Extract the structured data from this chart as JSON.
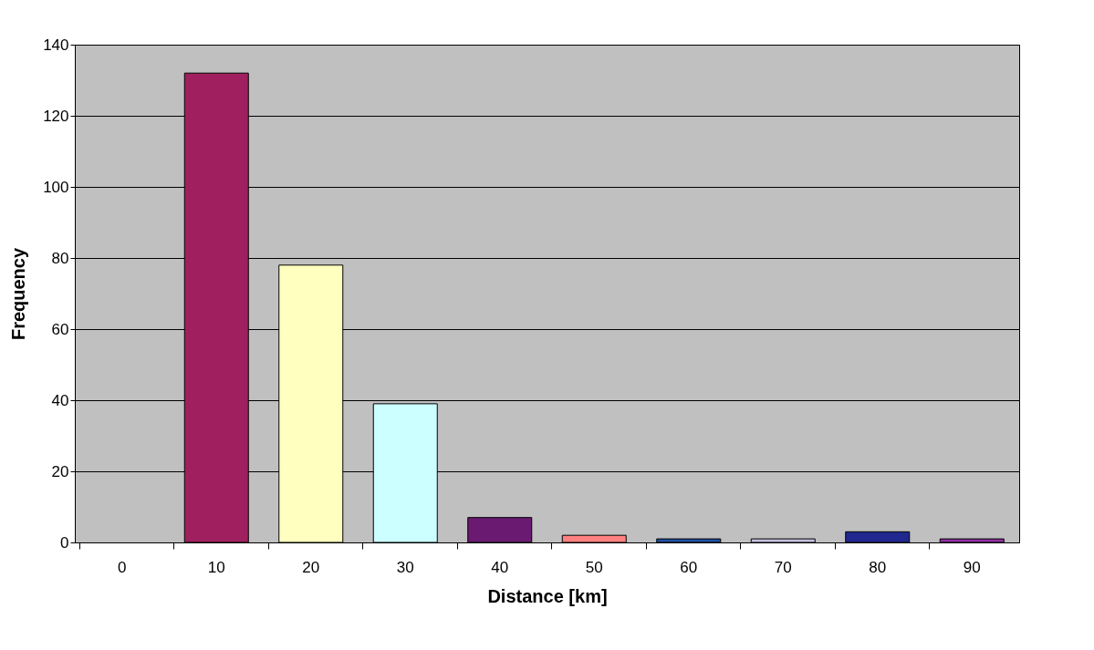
{
  "chart_data": {
    "type": "bar",
    "xlabel": "Distance [km]",
    "ylabel": "Frequency",
    "categories": [
      "0",
      "10",
      "20",
      "30",
      "40",
      "50",
      "60",
      "70",
      "80",
      "90"
    ],
    "values": [
      null,
      132,
      78,
      39,
      7,
      2,
      1,
      1,
      3,
      1
    ],
    "colors": [
      "#993366",
      "#a0205f",
      "#ffffc0",
      "#ccffff",
      "#6a1a70",
      "#ff8080",
      "#2050a0",
      "#c8c0e0",
      "#202890",
      "#9030a0"
    ],
    "ylim": [
      0,
      140
    ],
    "yticks": [
      0,
      20,
      40,
      60,
      80,
      100,
      120,
      140
    ],
    "grid": "y"
  }
}
